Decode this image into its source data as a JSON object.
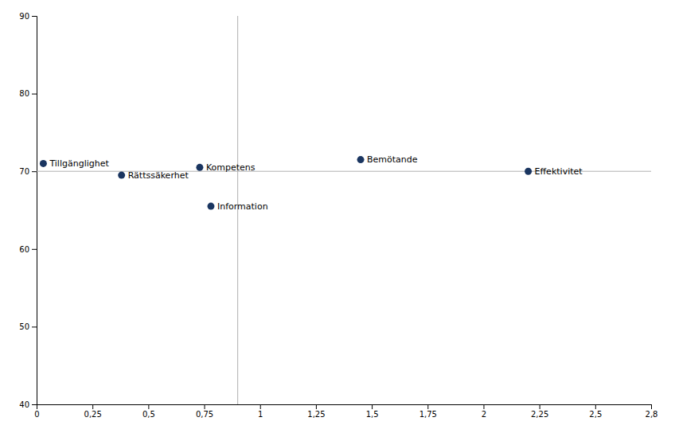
{
  "chart_data": {
    "type": "scatter",
    "x": [
      0.03,
      0.38,
      0.73,
      0.78,
      1.45,
      2.2
    ],
    "values": [
      71.0,
      69.5,
      70.5,
      65.5,
      71.5,
      70.0
    ],
    "labels": [
      "Tillgänglighet",
      "Rättssäkerhet",
      "Kompetens",
      "Information",
      "Bemötande",
      "Effektivitet"
    ],
    "color": "#1a3560",
    "crosshair": {
      "x": 0.9,
      "y": 70.0,
      "color": "#b0b0b0"
    },
    "xlim": [
      0,
      2.75
    ],
    "ylim": [
      40,
      90
    ],
    "xticks": [
      0,
      {
        "value": 0.25,
        "label": "0,25"
      },
      {
        "value": 0.5,
        "label": "0,5"
      },
      {
        "value": 0.75,
        "label": "0,75"
      },
      1,
      {
        "value": 1.25,
        "label": "1,25"
      },
      {
        "value": 1.5,
        "label": "1,5"
      },
      {
        "value": 1.75,
        "label": "1,75"
      },
      2,
      {
        "value": 2.25,
        "label": "2,25"
      },
      {
        "value": 2.5,
        "label": "2,5"
      },
      {
        "value": 2.75,
        "label": "2,8"
      }
    ],
    "yticks": [
      40,
      50,
      60,
      70,
      80,
      90
    ],
    "grid": false
  }
}
